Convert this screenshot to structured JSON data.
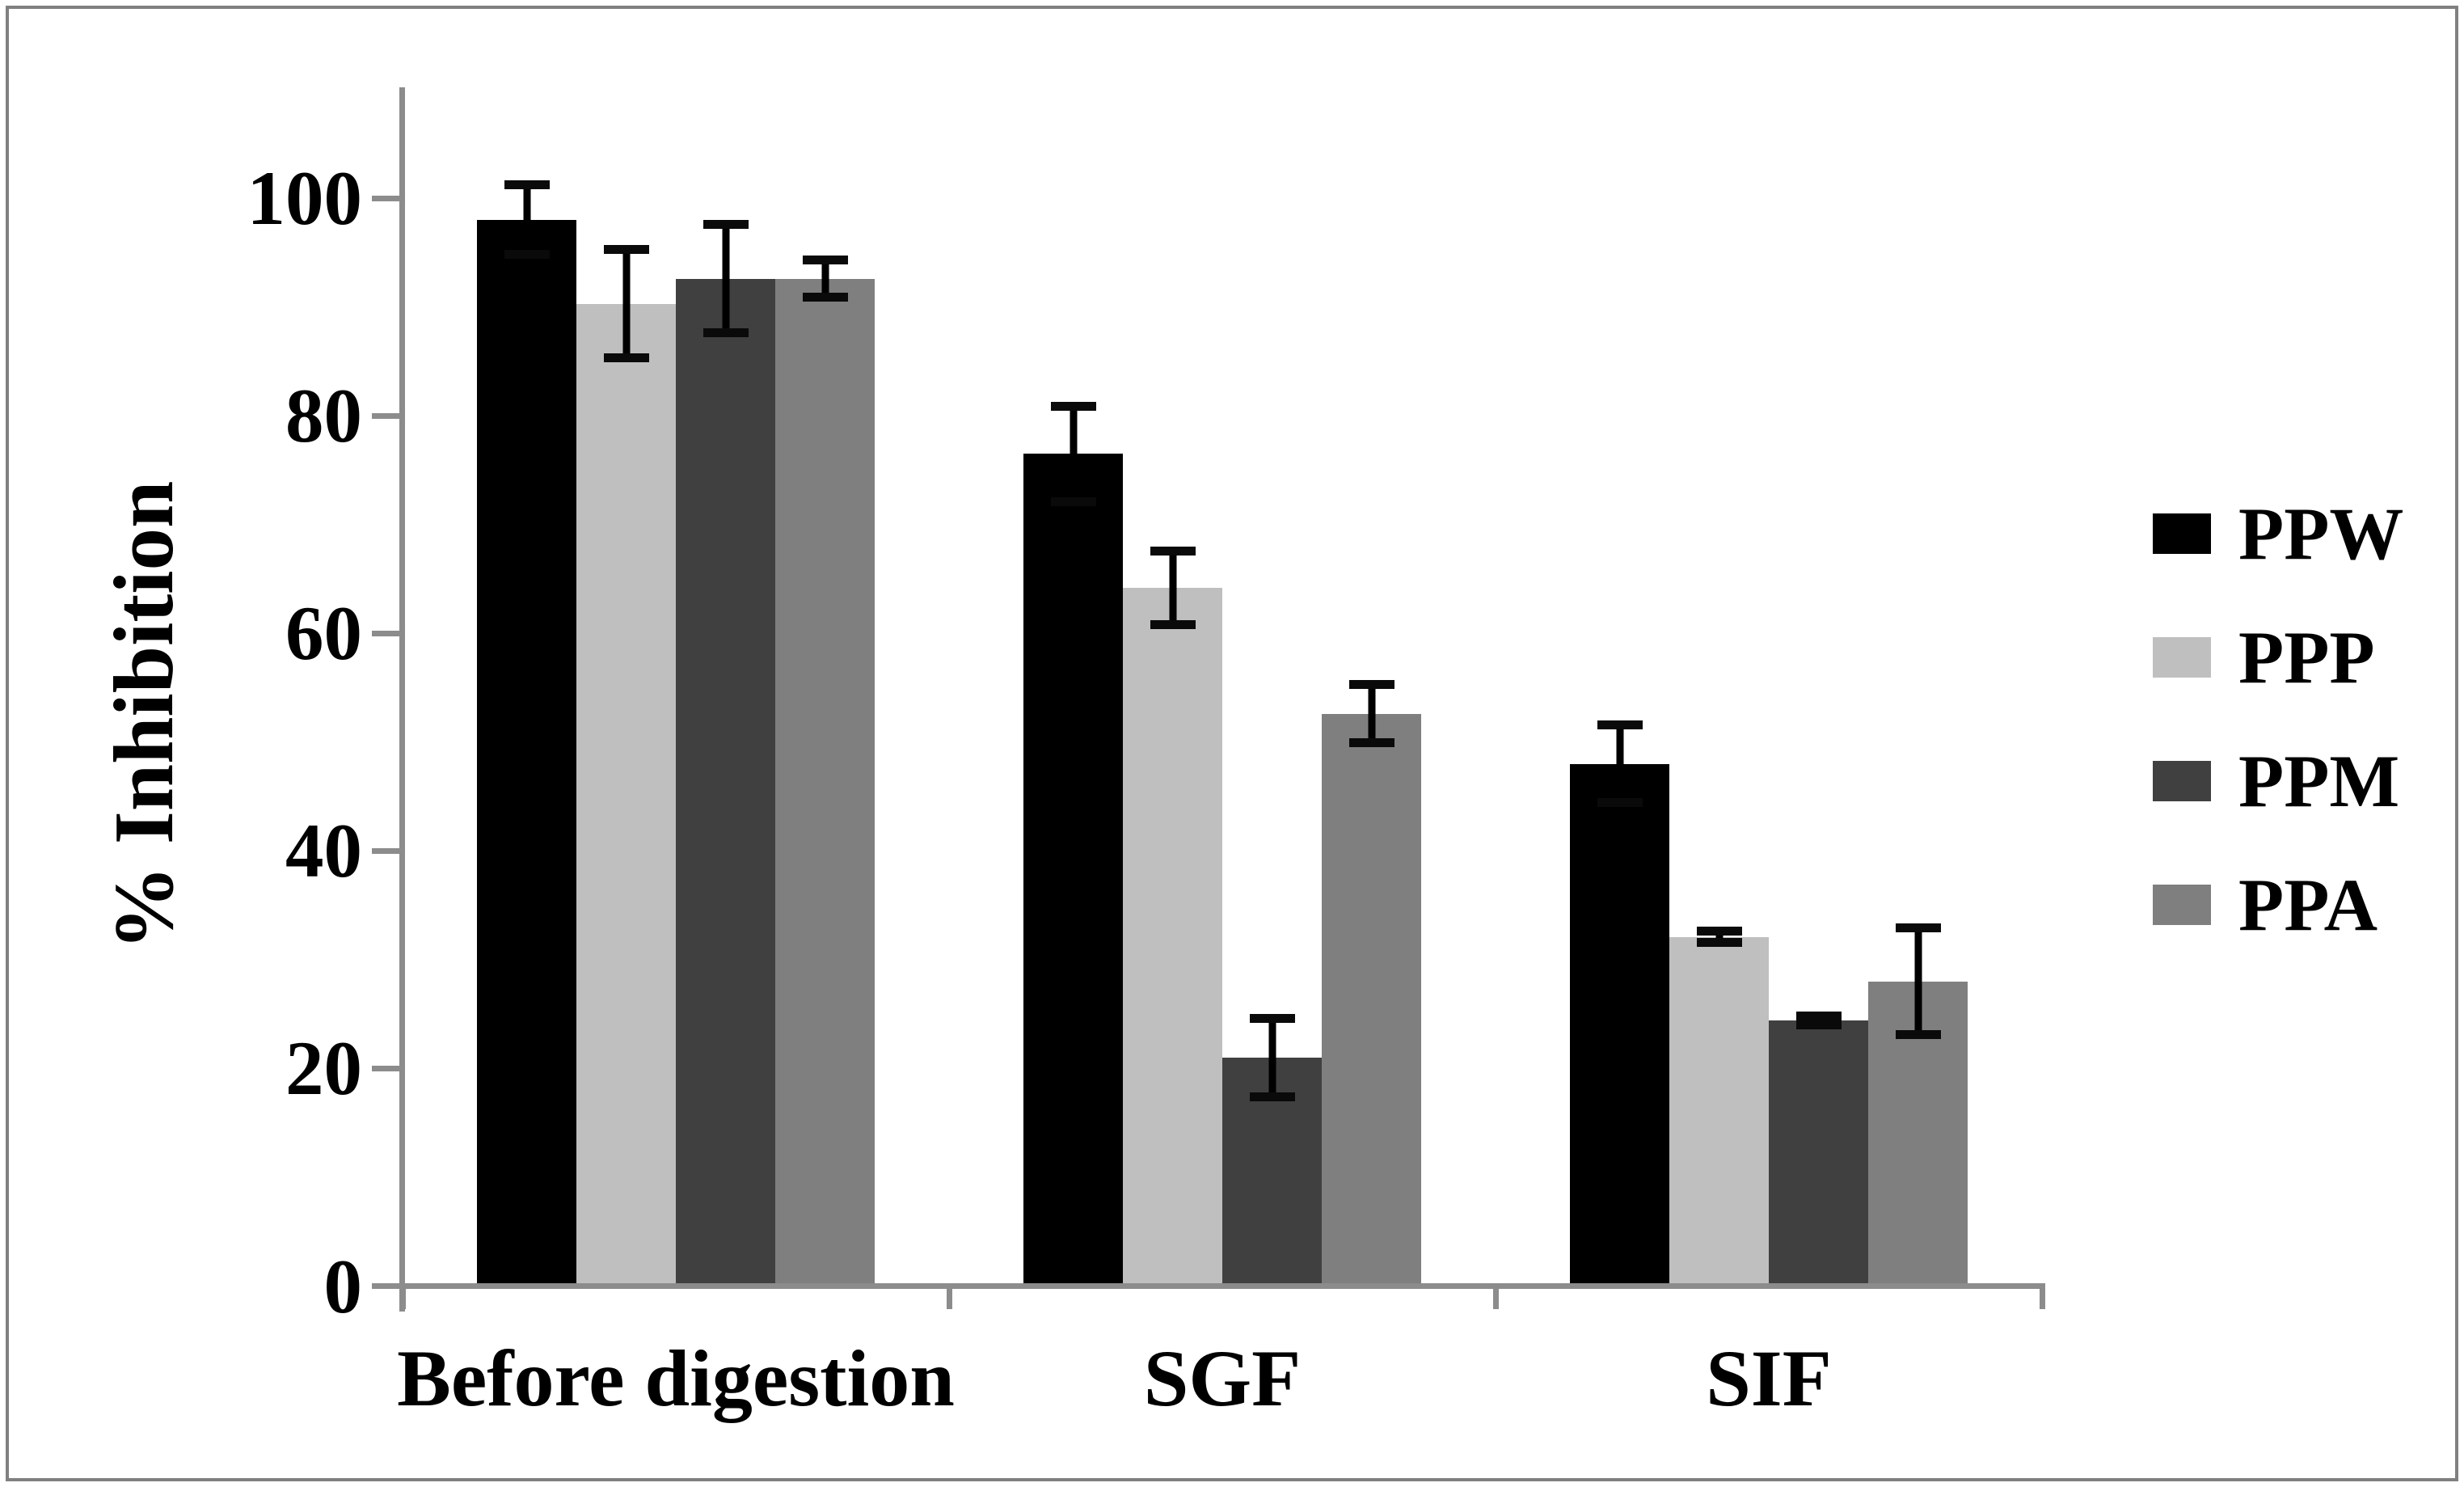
{
  "figure": {
    "y_axis_title": "% Inhibition"
  },
  "chart_data": {
    "type": "bar",
    "title": "",
    "xlabel": "",
    "ylabel": "% Inhibition",
    "categories": [
      "Before digestion",
      "SGF",
      "SIF"
    ],
    "series": [
      {
        "name": "PPW",
        "color": "#000000",
        "values": [
          98.0,
          76.5,
          48.0
        ],
        "errors": [
          3.6,
          4.8,
          4.0
        ]
      },
      {
        "name": "PPP",
        "color": "#bfbfbf",
        "values": [
          90.3,
          64.2,
          32.1
        ],
        "errors": [
          5.4,
          3.8,
          0.9
        ]
      },
      {
        "name": "PPM",
        "color": "#404040",
        "values": [
          92.6,
          21.0,
          24.4
        ],
        "errors": [
          5.4,
          4.0,
          0.8
        ]
      },
      {
        "name": "PPA",
        "color": "#7f7f7f",
        "values": [
          92.6,
          52.6,
          28.0
        ],
        "errors": [
          2.1,
          3.1,
          5.3
        ]
      }
    ],
    "ylim": [
      0,
      100
    ],
    "yticks": [
      0,
      20,
      40,
      60,
      80,
      100
    ],
    "grid": false,
    "legend_position": "right",
    "error_bars": true,
    "axis_color": "#8c8c8c",
    "border_color": "#808080"
  }
}
